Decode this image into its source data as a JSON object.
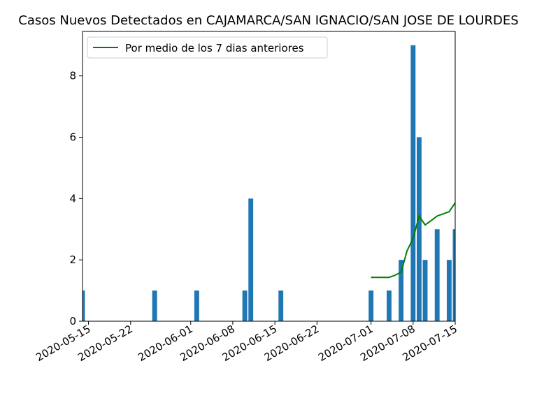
{
  "chart_data": {
    "type": "bar",
    "title": "Casos Nuevos Detectados en CAJAMARCA/SAN IGNACIO/SAN JOSE DE LOURDES",
    "xlabel": "",
    "ylabel": "",
    "xlim": [
      "2020-05-14",
      "2020-07-15"
    ],
    "ylim": [
      0,
      9.45
    ],
    "x_ticks": [
      "2020-05-15",
      "2020-05-22",
      "2020-06-01",
      "2020-06-08",
      "2020-06-15",
      "2020-06-22",
      "2020-07-01",
      "2020-07-08",
      "2020-07-15"
    ],
    "y_ticks": [
      0,
      2,
      4,
      6,
      8
    ],
    "grid": false,
    "legend_position": "top-left",
    "series": [
      {
        "kind": "bar",
        "color": "#1f77b4",
        "points": [
          {
            "date": "2020-05-14",
            "value": 1
          },
          {
            "date": "2020-05-26",
            "value": 1
          },
          {
            "date": "2020-06-02",
            "value": 1
          },
          {
            "date": "2020-06-10",
            "value": 1
          },
          {
            "date": "2020-06-11",
            "value": 4
          },
          {
            "date": "2020-06-16",
            "value": 1
          },
          {
            "date": "2020-07-01",
            "value": 1
          },
          {
            "date": "2020-07-04",
            "value": 1
          },
          {
            "date": "2020-07-06",
            "value": 2
          },
          {
            "date": "2020-07-08",
            "value": 9
          },
          {
            "date": "2020-07-09",
            "value": 6
          },
          {
            "date": "2020-07-10",
            "value": 2
          },
          {
            "date": "2020-07-12",
            "value": 3
          },
          {
            "date": "2020-07-14",
            "value": 2
          },
          {
            "date": "2020-07-15",
            "value": 3
          }
        ]
      },
      {
        "kind": "line",
        "name": "Por medio de los 7 dias anteriores",
        "color": "#008000",
        "points": [
          {
            "date": "2020-07-01",
            "value": 1.43
          },
          {
            "date": "2020-07-02",
            "value": 1.43
          },
          {
            "date": "2020-07-03",
            "value": 1.43
          },
          {
            "date": "2020-07-04",
            "value": 1.43
          },
          {
            "date": "2020-07-05",
            "value": 1.5
          },
          {
            "date": "2020-07-06",
            "value": 1.6
          },
          {
            "date": "2020-07-07",
            "value": 2.3
          },
          {
            "date": "2020-07-08",
            "value": 2.7
          },
          {
            "date": "2020-07-09",
            "value": 3.43
          },
          {
            "date": "2020-07-10",
            "value": 3.14
          },
          {
            "date": "2020-07-11",
            "value": 3.28
          },
          {
            "date": "2020-07-12",
            "value": 3.43
          },
          {
            "date": "2020-07-13",
            "value": 3.5
          },
          {
            "date": "2020-07-14",
            "value": 3.57
          },
          {
            "date": "2020-07-15",
            "value": 3.86
          }
        ]
      }
    ]
  }
}
